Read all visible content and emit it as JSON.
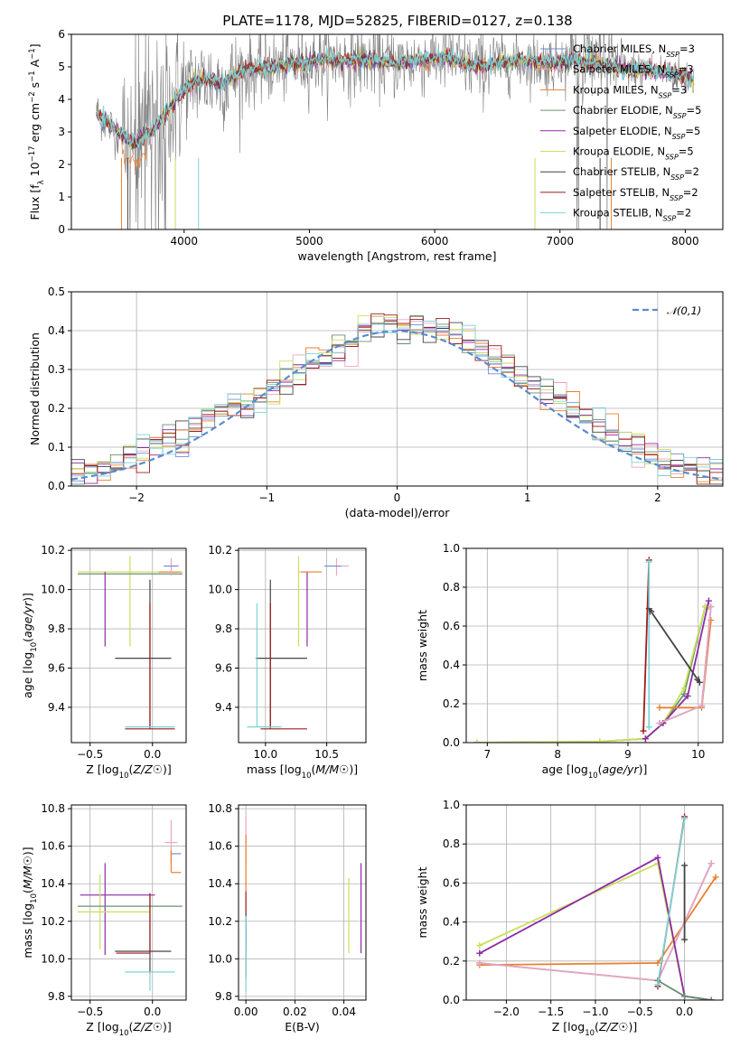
{
  "title": "PLATE=1178, MJD=52825, FIBERID=0127, z=0.138",
  "colors": {
    "chabrier_miles": "#6f8fd6",
    "salpeter_miles": "#e9a6bf",
    "kroupa_miles": "#e8802e",
    "chabrier_elodie": "#6a9070",
    "salpeter_elodie": "#8e2aa6",
    "kroupa_elodie": "#c9e05a",
    "chabrier_stelib": "#444444",
    "salpeter_stelib": "#a01c1c",
    "kroupa_stelib": "#7dd3d8",
    "spectrum": "#808080",
    "normal": "#5b8bd0",
    "grid": "#b0b0b0"
  },
  "legend": [
    {
      "key": "chabrier_miles",
      "label": "Chabrier MILES, N_SSP=3"
    },
    {
      "key": "salpeter_miles",
      "label": "Salpeter MILES, N_SSP=3"
    },
    {
      "key": "kroupa_miles",
      "label": "Kroupa MILES, N_SSP=3"
    },
    {
      "key": "chabrier_elodie",
      "label": "Chabrier ELODIE, N_SSP=5"
    },
    {
      "key": "salpeter_elodie",
      "label": "Salpeter ELODIE, N_SSP=5"
    },
    {
      "key": "kroupa_elodie",
      "label": "Kroupa ELODIE, N_SSP=5"
    },
    {
      "key": "chabrier_stelib",
      "label": "Chabrier STELIB, N_SSP=2"
    },
    {
      "key": "salpeter_stelib",
      "label": "Salpeter STELIB, N_SSP=2"
    },
    {
      "key": "kroupa_stelib",
      "label": "Kroupa STELIB, N_SSP=2"
    }
  ],
  "chart_data": [
    {
      "id": "spectrum",
      "type": "line",
      "xlabel": "wavelength [Angstrom, rest frame]",
      "ylabel": "Flux [f_λ 10^-17 erg cm^-2 s^-1 A^-1]",
      "xlim": [
        3100,
        8300
      ],
      "ylim": [
        0,
        6
      ],
      "xticks": [
        4000,
        5000,
        6000,
        7000,
        8000
      ],
      "yticks": [
        0,
        1,
        2,
        3,
        4,
        5,
        6
      ],
      "grid": false,
      "legend_position": "upper-right",
      "continuum_knots": {
        "x": [
          3300,
          3400,
          3500,
          3600,
          3700,
          3800,
          3900,
          4000,
          4100,
          4200,
          4300,
          4500,
          4700,
          4900,
          5100,
          5300,
          5500,
          5700,
          5900,
          6100,
          6300,
          6500,
          6700,
          6900,
          7100,
          7300,
          7500,
          7700,
          7900,
          8070
        ],
        "y": [
          3.6,
          3.2,
          2.9,
          2.6,
          2.9,
          3.3,
          3.8,
          4.3,
          4.6,
          4.6,
          4.5,
          4.9,
          5.0,
          5.1,
          5.2,
          5.2,
          5.2,
          5.1,
          5.2,
          5.3,
          5.0,
          5.1,
          5.2,
          5.1,
          5.2,
          5.1,
          4.9,
          4.9,
          4.8,
          4.6
        ]
      }
    },
    {
      "id": "residuals",
      "type": "step",
      "xlabel": "(data-model)/error",
      "ylabel": "Normed distribution",
      "xlim": [
        -2.5,
        2.5
      ],
      "ylim": [
        0,
        0.5
      ],
      "xticks": [
        -2,
        -1,
        0,
        1,
        2
      ],
      "yticks": [
        0.0,
        0.1,
        0.2,
        0.3,
        0.4,
        0.5
      ],
      "grid": true,
      "normal_label": "𝒩(0,1)",
      "legend_position": "upper-right",
      "bin_width": 0.1
    },
    {
      "id": "age_vs_Z",
      "type": "errorbar",
      "xlabel": "Z [log10(Z/Z☉)]",
      "ylabel": "age  [log10(age/yr)]",
      "xlim": [
        -0.65,
        0.27
      ],
      "ylim": [
        9.22,
        10.21
      ],
      "xticks": [
        -0.5,
        0.0
      ],
      "yticks": [
        9.4,
        9.6,
        9.8,
        10.0,
        10.2
      ],
      "grid": true,
      "points": [
        {
          "key": "kroupa_elodie",
          "x": -0.18,
          "y": 10.09,
          "xerr": [
            0.42,
            0.42
          ],
          "yerr": [
            0.38,
            0.08
          ]
        },
        {
          "key": "chabrier_elodie",
          "x": -0.18,
          "y": 10.08,
          "xerr": [
            0.42,
            0.42
          ],
          "yerr": [
            0.0,
            0.0
          ]
        },
        {
          "key": "salpeter_elodie",
          "x": -0.38,
          "y": 10.09,
          "xerr": [
            0.0,
            0.0
          ],
          "yerr": [
            0.38,
            0.0
          ]
        },
        {
          "key": "kroupa_miles",
          "x": 0.15,
          "y": 10.09,
          "xerr": [
            0.1,
            0.08
          ],
          "yerr": [
            0.0,
            0.0
          ]
        },
        {
          "key": "salpeter_miles",
          "x": 0.15,
          "y": 10.12,
          "xerr": [
            0.05,
            0.05
          ],
          "yerr": [
            0.05,
            0.04
          ]
        },
        {
          "key": "chabrier_miles",
          "x": 0.15,
          "y": 10.12,
          "xerr": [
            0.06,
            0.06
          ],
          "yerr": [
            0.0,
            0.0
          ]
        },
        {
          "key": "chabrier_stelib",
          "x": -0.02,
          "y": 9.65,
          "xerr": [
            0.28,
            0.17
          ],
          "yerr": [
            0.35,
            0.4
          ]
        },
        {
          "key": "salpeter_stelib",
          "x": -0.02,
          "y": 9.29,
          "xerr": [
            0.2,
            0.2
          ],
          "yerr": [
            0.0,
            0.64
          ]
        },
        {
          "key": "kroupa_stelib",
          "x": -0.02,
          "y": 9.3,
          "xerr": [
            0.2,
            0.2
          ],
          "yerr": [
            0.0,
            0.0
          ]
        }
      ]
    },
    {
      "id": "age_vs_mass",
      "type": "errorbar",
      "xlabel": "mass [log10(M/M☉)]",
      "ylabel": "",
      "xlim": [
        9.78,
        10.82
      ],
      "ylim": [
        9.22,
        10.21
      ],
      "xticks": [
        10.0,
        10.5
      ],
      "yticks": [
        9.4,
        9.6,
        9.8,
        10.0,
        10.2
      ],
      "grid": true,
      "points": [
        {
          "key": "kroupa_elodie",
          "x": 10.27,
          "y": 10.09,
          "xerr": [
            0.0,
            0.08
          ],
          "yerr": [
            0.38,
            0.08
          ]
        },
        {
          "key": "chabrier_elodie",
          "x": 10.27,
          "y": 10.08,
          "xerr": [
            0.0,
            0.0
          ],
          "yerr": [
            0.0,
            0.0
          ]
        },
        {
          "key": "salpeter_elodie",
          "x": 10.34,
          "y": 10.09,
          "xerr": [
            0.0,
            0.0
          ],
          "yerr": [
            0.38,
            0.0
          ]
        },
        {
          "key": "kroupa_miles",
          "x": 10.46,
          "y": 10.09,
          "xerr": [
            0.17,
            0.0
          ],
          "yerr": [
            0.0,
            0.0
          ]
        },
        {
          "key": "salpeter_miles",
          "x": 10.58,
          "y": 10.12,
          "xerr": [
            0.08,
            0.1
          ],
          "yerr": [
            0.05,
            0.04
          ]
        },
        {
          "key": "chabrier_miles",
          "x": 10.56,
          "y": 10.12,
          "xerr": [
            0.08,
            0.06
          ],
          "yerr": [
            0.0,
            0.0
          ]
        },
        {
          "key": "chabrier_stelib",
          "x": 10.04,
          "y": 9.65,
          "xerr": [
            0.12,
            0.3
          ],
          "yerr": [
            0.35,
            0.4
          ]
        },
        {
          "key": "salpeter_stelib",
          "x": 10.04,
          "y": 9.29,
          "xerr": [
            0.08,
            0.3
          ],
          "yerr": [
            0.0,
            0.64
          ]
        },
        {
          "key": "kroupa_stelib",
          "x": 9.93,
          "y": 9.3,
          "xerr": [
            0.08,
            0.2
          ],
          "yerr": [
            0.0,
            0.63
          ]
        }
      ]
    },
    {
      "id": "weight_vs_age",
      "type": "line",
      "xlabel": "age  [log10(age/yr)]",
      "ylabel": "mass weight",
      "xlim": [
        6.7,
        10.35
      ],
      "ylim": [
        0,
        1.0
      ],
      "xticks": [
        7,
        8,
        9,
        10
      ],
      "yticks": [
        0.0,
        0.2,
        0.4,
        0.6,
        0.8,
        1.0
      ],
      "grid": true,
      "series": [
        {
          "key": "chabrier_elodie",
          "x": [
            6.85,
            8.6,
            9.25,
            9.5,
            9.8,
            10.1,
            10.15
          ],
          "y": [
            0.0,
            0.005,
            0.02,
            0.1,
            0.25,
            0.7,
            0.7
          ]
        },
        {
          "key": "kroupa_elodie",
          "x": [
            6.85,
            8.6,
            9.25,
            9.5,
            9.8,
            10.1,
            10.15
          ],
          "y": [
            0.0,
            0.005,
            0.02,
            0.1,
            0.28,
            0.7,
            0.7
          ]
        },
        {
          "key": "salpeter_elodie",
          "x": [
            9.25,
            9.5,
            9.85,
            10.15
          ],
          "y": [
            0.02,
            0.1,
            0.24,
            0.73
          ]
        },
        {
          "key": "kroupa_miles",
          "x": [
            9.45,
            10.05,
            10.18
          ],
          "y": [
            0.18,
            0.18,
            0.63
          ]
        },
        {
          "key": "chabrier_miles",
          "x": [
            9.45,
            10.05,
            10.18
          ],
          "y": [
            0.1,
            0.19,
            0.7
          ]
        },
        {
          "key": "salpeter_miles",
          "x": [
            9.45,
            10.05,
            10.18
          ],
          "y": [
            0.1,
            0.19,
            0.7
          ]
        },
        {
          "key": "chabrier_stelib",
          "x": [
            9.3,
            10.02
          ],
          "y": [
            0.69,
            0.31
          ]
        },
        {
          "key": "salpeter_stelib",
          "x": [
            9.22,
            9.3
          ],
          "y": [
            0.06,
            0.94
          ]
        },
        {
          "key": "kroupa_stelib",
          "x": [
            9.3,
            9.3
          ],
          "y": [
            0.08,
            0.93
          ]
        }
      ]
    },
    {
      "id": "mass_vs_Z",
      "type": "errorbar",
      "xlabel": "Z [log10(Z/Z☉)]",
      "ylabel": "mass [log10(M/M☉)]",
      "xlim": [
        -0.65,
        0.27
      ],
      "ylim": [
        9.78,
        10.82
      ],
      "xticks": [
        -0.5,
        0.0
      ],
      "yticks": [
        9.8,
        10.0,
        10.2,
        10.4,
        10.6,
        10.8
      ],
      "grid": true,
      "points": [
        {
          "key": "salpeter_miles",
          "x": 0.15,
          "y": 10.62,
          "xerr": [
            0.05,
            0.05
          ],
          "yerr": [
            0.1,
            0.12
          ]
        },
        {
          "key": "chabrier_miles",
          "x": 0.15,
          "y": 10.56,
          "xerr": [
            0.0,
            0.08
          ],
          "yerr": [
            0.05,
            0.0
          ]
        },
        {
          "key": "kroupa_miles",
          "x": 0.15,
          "y": 10.46,
          "xerr": [
            0.0,
            0.08
          ],
          "yerr": [
            0.0,
            0.12
          ]
        },
        {
          "key": "salpeter_elodie",
          "x": -0.38,
          "y": 10.34,
          "xerr": [
            0.2,
            0.4
          ],
          "yerr": [
            0.32,
            0.17
          ]
        },
        {
          "key": "kroupa_elodie",
          "x": -0.42,
          "y": 10.25,
          "xerr": [
            0.18,
            0.4
          ],
          "yerr": [
            0.2,
            0.2
          ]
        },
        {
          "key": "chabrier_elodie",
          "x": -0.18,
          "y": 10.28,
          "xerr": [
            0.42,
            0.42
          ],
          "yerr": [
            0.0,
            0.0
          ]
        },
        {
          "key": "chabrier_stelib",
          "x": -0.02,
          "y": 10.04,
          "xerr": [
            0.28,
            0.17
          ],
          "yerr": [
            0.12,
            0.3
          ]
        },
        {
          "key": "salpeter_stelib",
          "x": -0.02,
          "y": 10.03,
          "xerr": [
            0.27,
            0.0
          ],
          "yerr": [
            0.0,
            0.32
          ]
        },
        {
          "key": "kroupa_stelib",
          "x": -0.02,
          "y": 9.93,
          "xerr": [
            0.2,
            0.2
          ],
          "yerr": [
            0.1,
            0.0
          ]
        }
      ]
    },
    {
      "id": "mass_vs_ebv",
      "type": "errorbar",
      "xlabel": "E(B-V)",
      "ylabel": "",
      "xlim": [
        -0.003,
        0.049
      ],
      "ylim": [
        9.78,
        10.82
      ],
      "xticks": [
        0.0,
        0.02,
        0.04
      ],
      "yticks": [
        9.8,
        10.0,
        10.2,
        10.4,
        10.6,
        10.8
      ],
      "grid": true,
      "points": [
        {
          "key": "salpeter_miles",
          "x": 0.0,
          "y": 10.62,
          "xerr": [
            0,
            0
          ],
          "yerr": [
            0.12,
            0.14
          ]
        },
        {
          "key": "kroupa_miles",
          "x": 0.0,
          "y": 10.46,
          "xerr": [
            0,
            0
          ],
          "yerr": [
            0.1,
            0.2
          ]
        },
        {
          "key": "chabrier_miles",
          "x": 0.0,
          "y": 10.2,
          "xerr": [
            0,
            0
          ],
          "yerr": [
            0.16,
            0.02
          ]
        },
        {
          "key": "salpeter_stelib",
          "x": 0.0,
          "y": 10.28,
          "xerr": [
            0,
            0
          ],
          "yerr": [
            0.06,
            0.08
          ]
        },
        {
          "key": "chabrier_stelib",
          "x": 0.0,
          "y": 10.1,
          "xerr": [
            0,
            0
          ],
          "yerr": [
            0.2,
            0.14
          ]
        },
        {
          "key": "kroupa_stelib",
          "x": 0.0,
          "y": 9.93,
          "xerr": [
            0,
            0
          ],
          "yerr": [
            0.1,
            0.3
          ]
        },
        {
          "key": "kroupa_elodie",
          "x": 0.042,
          "y": 10.23,
          "xerr": [
            0,
            0
          ],
          "yerr": [
            0.2,
            0.2
          ]
        },
        {
          "key": "salpeter_elodie",
          "x": 0.047,
          "y": 10.27,
          "xerr": [
            0,
            0
          ],
          "yerr": [
            0.24,
            0.24
          ]
        }
      ]
    },
    {
      "id": "weight_vs_Z",
      "type": "line",
      "xlabel": "Z [log10(Z/Z☉)]",
      "ylabel": "mass weight",
      "xlim": [
        -2.45,
        0.43
      ],
      "ylim": [
        0,
        1.0
      ],
      "xticks": [
        -2.0,
        -1.5,
        -1.0,
        -0.5,
        0.0
      ],
      "yticks": [
        0.0,
        0.2,
        0.4,
        0.6,
        0.8,
        1.0
      ],
      "grid": true,
      "series": [
        {
          "key": "kroupa_miles",
          "x": [
            -2.3,
            -0.3,
            0.35
          ],
          "y": [
            0.18,
            0.19,
            0.63
          ]
        },
        {
          "key": "chabrier_miles",
          "x": [
            -2.3,
            -0.3,
            0.3
          ],
          "y": [
            0.19,
            0.1,
            0.7
          ]
        },
        {
          "key": "salpeter_miles",
          "x": [
            -2.3,
            -0.3,
            0.3
          ],
          "y": [
            0.19,
            0.1,
            0.7
          ]
        },
        {
          "key": "kroupa_elodie",
          "x": [
            -2.3,
            -0.3,
            0.0,
            0.3
          ],
          "y": [
            0.28,
            0.7,
            0.02,
            0.0
          ]
        },
        {
          "key": "salpeter_elodie",
          "x": [
            -2.3,
            -0.3,
            0.0,
            0.3
          ],
          "y": [
            0.24,
            0.73,
            0.02,
            0.0
          ]
        },
        {
          "key": "chabrier_elodie",
          "x": [
            -0.3,
            0.0,
            0.3
          ],
          "y": [
            0.1,
            0.02,
            0.0
          ]
        },
        {
          "key": "salpeter_stelib",
          "x": [
            -0.3,
            0.0
          ],
          "y": [
            0.07,
            0.94
          ]
        },
        {
          "key": "kroupa_stelib",
          "x": [
            -0.3,
            0.0
          ],
          "y": [
            0.08,
            0.93
          ]
        },
        {
          "key": "chabrier_stelib",
          "x": [
            0.0,
            0.0
          ],
          "y": [
            0.31,
            0.69
          ]
        }
      ]
    }
  ]
}
